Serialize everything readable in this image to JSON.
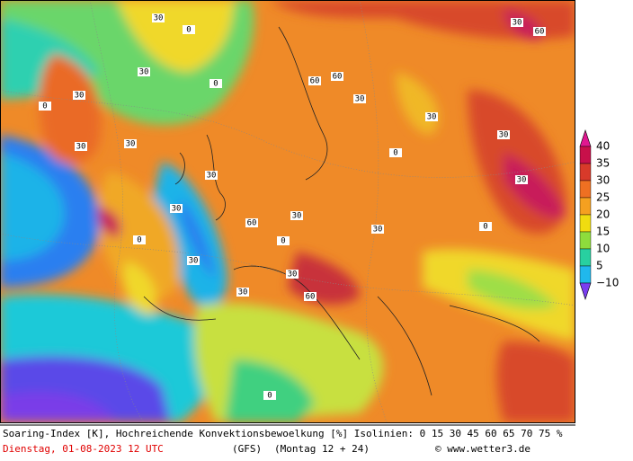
{
  "map": {
    "legend": [
      "40",
      "35",
      "30",
      "25",
      "20",
      "15",
      "10",
      "5",
      "−10"
    ],
    "labels": [
      "30",
      "0",
      "30",
      "30",
      "0",
      "30",
      "30",
      "60",
      "60",
      "30",
      "0",
      "30",
      "30",
      "60",
      "0",
      "30",
      "0",
      "30",
      "30",
      "60",
      "30",
      "0",
      "30",
      "60",
      "30",
      "0",
      "30",
      "30",
      "0",
      "30"
    ]
  },
  "footer": {
    "line1": "Soaring-Index [K], Hochreichende Konvektionsbewoelkung [%] Isolinien: 0 15 30 45 60 65 70 75 %",
    "date": "Dienstag, 01-08-2023  12 UTC",
    "model": "(GFS)",
    "run": "(Montag 12 + 24)",
    "credit": "© www.wetter3.de"
  }
}
